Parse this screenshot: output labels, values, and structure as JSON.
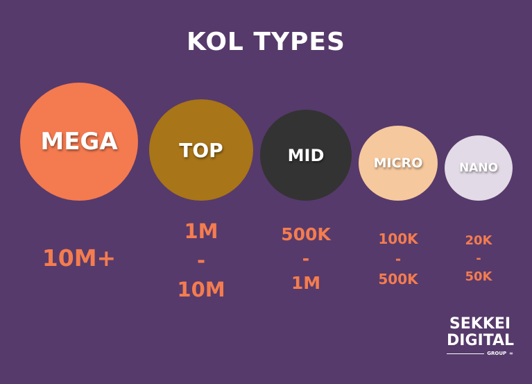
{
  "title": "KOL TYPES",
  "tiers": [
    {
      "label": "MEGA",
      "range": [
        "10M+"
      ],
      "color": "#f47a50"
    },
    {
      "label": "TOP",
      "range": [
        "1M",
        "-",
        "10M"
      ],
      "color": "#a87518"
    },
    {
      "label": "MID",
      "range": [
        "500K",
        "-",
        "1M"
      ],
      "color": "#333333"
    },
    {
      "label": "MICRO",
      "range": [
        "100K",
        "-",
        "500K"
      ],
      "color": "#f6c89d"
    },
    {
      "label": "NANO",
      "range": [
        "20K",
        "-",
        "50K"
      ],
      "color": "#e2dae6"
    }
  ],
  "logo": {
    "line1": "SEKKEI",
    "line2": "DIGITAL",
    "sub": "GROUP"
  },
  "colors": {
    "background": "#563a6b",
    "range_text": "#f47c4f"
  }
}
